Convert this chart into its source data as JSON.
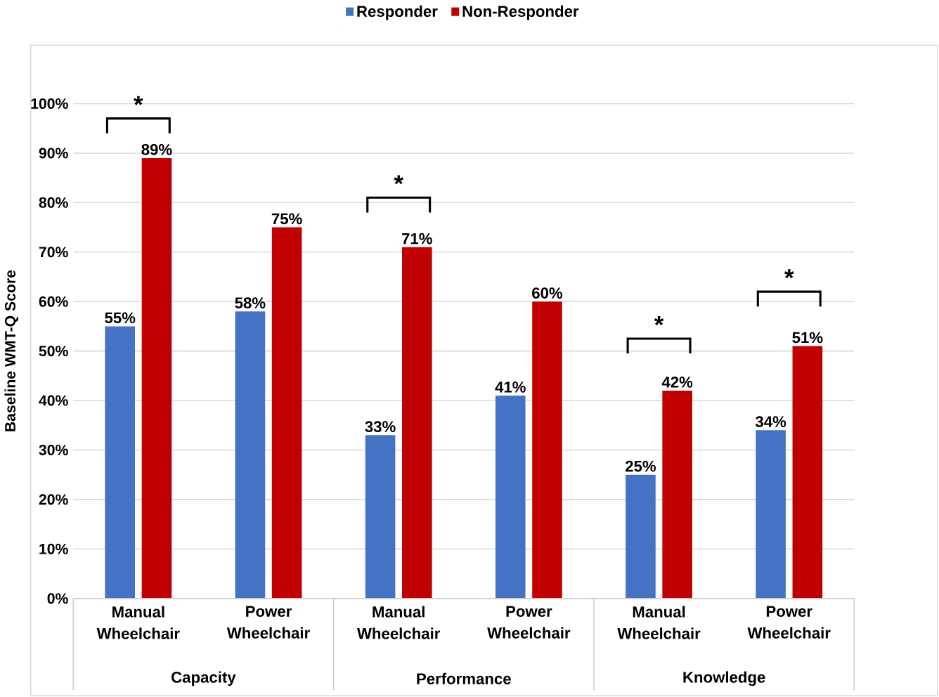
{
  "chart_data": {
    "type": "bar",
    "ylabel": "Baseline WMT-Q Score",
    "categories": [
      "Manual Wheelchair",
      "Power Wheelchair",
      "Manual Wheelchair",
      "Power Wheelchair",
      "Manual Wheelchair",
      "Power Wheelchair"
    ],
    "series": [
      {
        "name": "Responder",
        "color": "#4472c4",
        "values": [
          55,
          58,
          33,
          41,
          25,
          34
        ],
        "value_labels": [
          "55%",
          "58%",
          "33%",
          "41%",
          "25%",
          "34%"
        ]
      },
      {
        "name": "Non-Responder",
        "color": "#c00000",
        "values": [
          89,
          75,
          71,
          60,
          42,
          51
        ],
        "value_labels": [
          "89%",
          "75%",
          "71%",
          "60%",
          "42%",
          "51%"
        ]
      }
    ],
    "ylim": [
      0,
      100
    ],
    "yticks": [
      {
        "value": 0,
        "label": "0%"
      },
      {
        "value": 10,
        "label": "10%"
      },
      {
        "value": 20,
        "label": "20%"
      },
      {
        "value": 30,
        "label": "30%"
      },
      {
        "value": 40,
        "label": "40%"
      },
      {
        "value": 50,
        "label": "50%"
      },
      {
        "value": 60,
        "label": "60%"
      },
      {
        "value": 70,
        "label": "70%"
      },
      {
        "value": 80,
        "label": "80%"
      },
      {
        "value": 90,
        "label": "90%"
      },
      {
        "value": 100,
        "label": "100%"
      }
    ],
    "grid": "y",
    "legend": "top",
    "annotations": [
      "Capacity",
      "Performance",
      "Knowledge",
      "*",
      "*",
      "*",
      "*"
    ]
  }
}
